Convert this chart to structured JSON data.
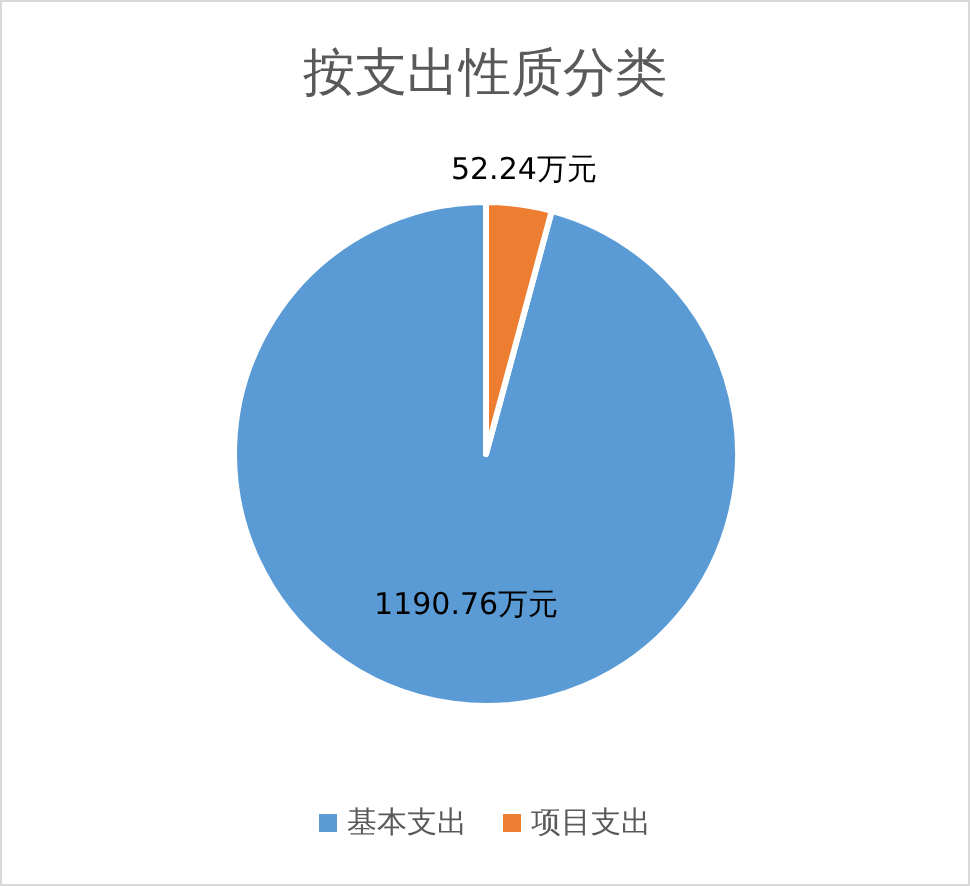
{
  "chart_data": {
    "type": "pie",
    "title": "按支出性质分类",
    "categories": [
      "基本支出",
      "项目支出"
    ],
    "values": [
      1190.76,
      52.24
    ],
    "colors": [
      "#5b9bd5",
      "#ed7d31"
    ],
    "value_labels": [
      "1190.76万元",
      "52.24万元"
    ],
    "legend": "bottom"
  }
}
